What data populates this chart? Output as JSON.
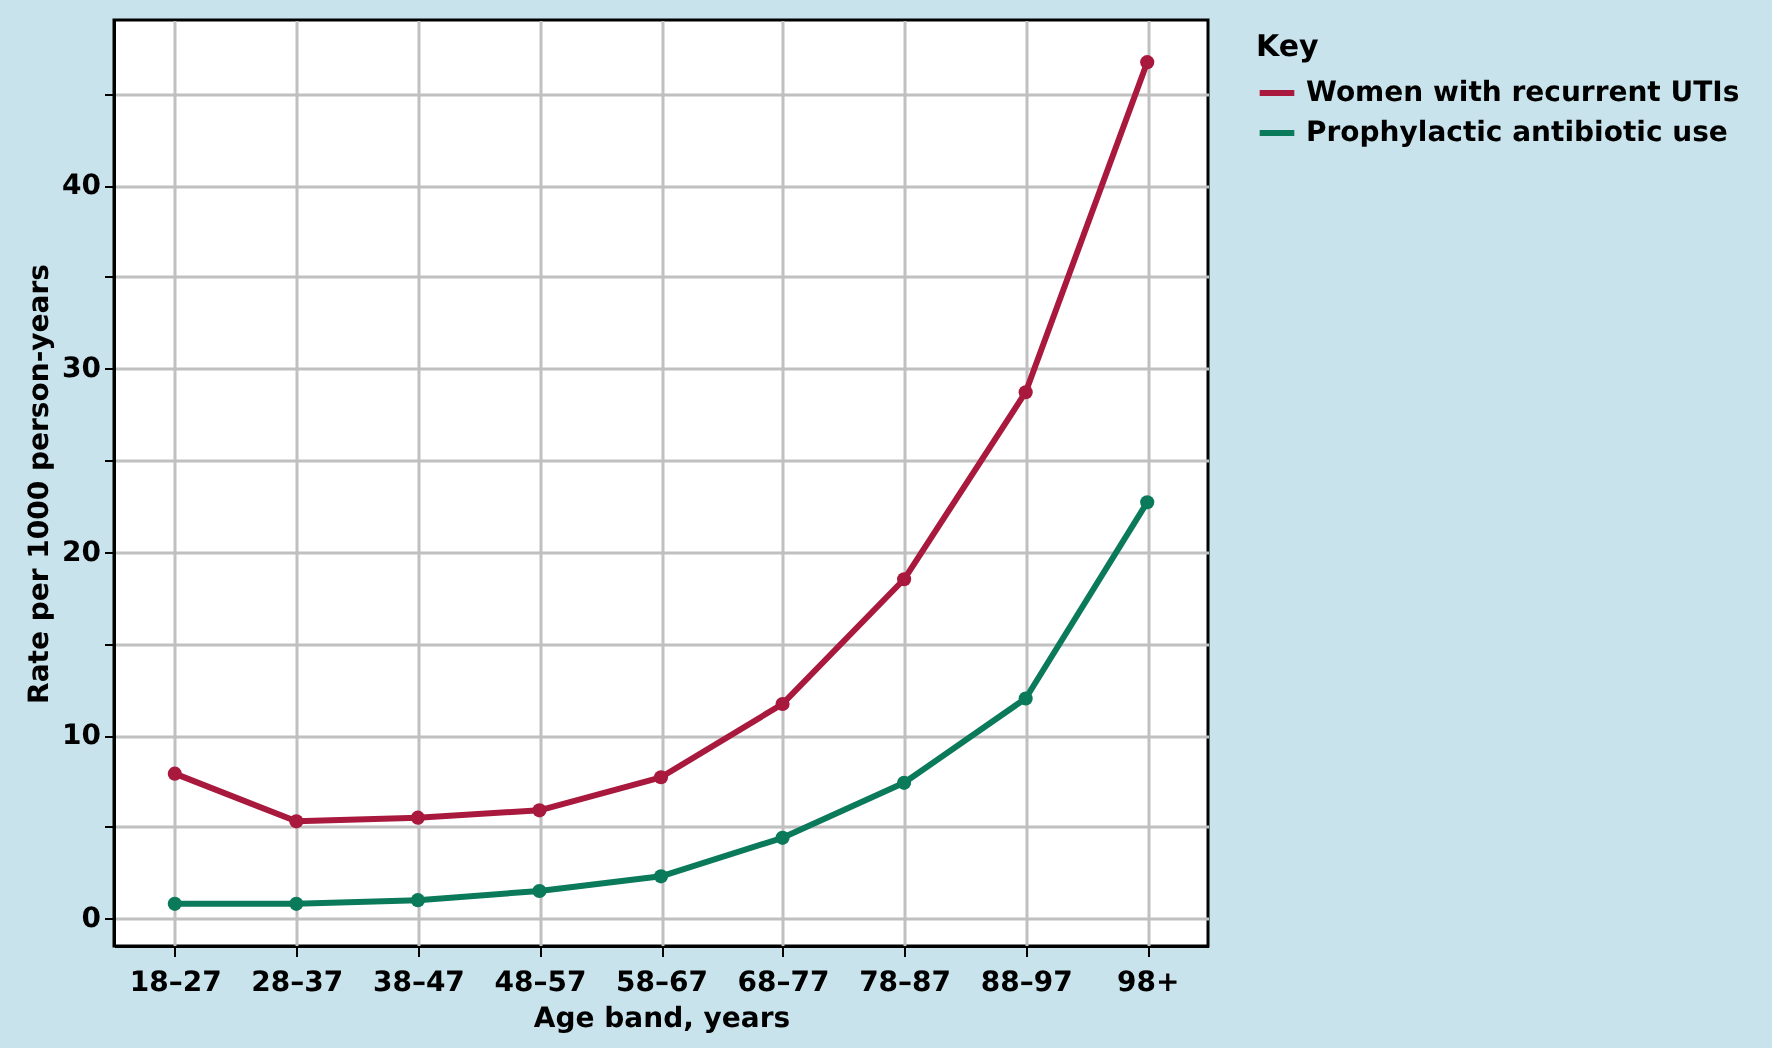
{
  "chart_data": {
    "type": "line",
    "xlabel": "Age band, years",
    "ylabel": "Rate per 1000 person-years",
    "legend_title": "Key",
    "categories": [
      "18–27",
      "28–37",
      "38–47",
      "48–57",
      "58–67",
      "68–77",
      "78–87",
      "88–97",
      "98+"
    ],
    "series": [
      {
        "name": "Women with recurrent UTIs",
        "color": "#a8193d",
        "values": [
          7.9,
          5.3,
          5.5,
          5.9,
          7.7,
          11.7,
          18.5,
          28.7,
          46.7
        ]
      },
      {
        "name": "Prophylactic antibiotic use",
        "color": "#0b7a5a",
        "values": [
          0.8,
          0.8,
          1.0,
          1.5,
          2.3,
          4.4,
          7.4,
          12.0,
          22.7
        ]
      }
    ],
    "ylim": [
      -1.5,
      49
    ],
    "yticks": [
      0,
      {
        "value": 5,
        "label": null
      },
      10,
      {
        "value": 15,
        "label": null
      },
      20,
      {
        "value": 25,
        "label": null
      },
      30,
      {
        "value": 35,
        "label": null
      },
      40,
      {
        "value": 45,
        "label": null
      }
    ],
    "grid": true,
    "legend": "right",
    "marker": "circle",
    "line_style": "solid"
  }
}
